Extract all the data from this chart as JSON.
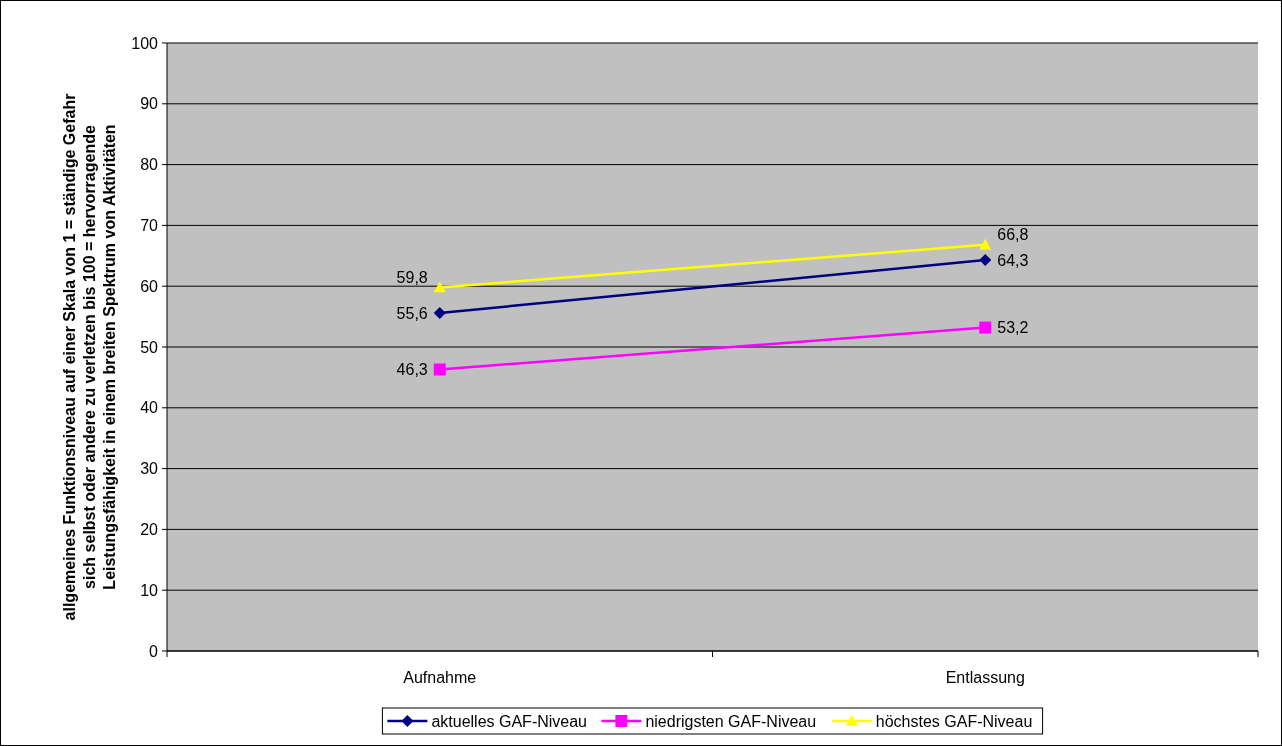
{
  "chart_data": {
    "type": "line",
    "ylabel": "allgemeines Funktionsniveau auf einer Skala von 1 = ständige Gefahr sich selbst oder andere zu verletzen bis 100 = hervorragende Leistungsfähigkeit in einem breiten Spektrum von Aktivitäten",
    "categories": [
      "Aufnahme",
      "Entlassung"
    ],
    "series": [
      {
        "name": "aktuelles GAF-Niveau",
        "color": "#000080",
        "marker": "diamond",
        "values": [
          55.6,
          64.3
        ],
        "value_labels": [
          "55,6",
          "64,3"
        ]
      },
      {
        "name": "niedrigsten GAF-Niveau",
        "color": "#ff00ff",
        "marker": "square",
        "values": [
          46.3,
          53.2
        ],
        "value_labels": [
          "46,3",
          "53,2"
        ]
      },
      {
        "name": "höchstes GAF-Niveau",
        "color": "#ffff00",
        "marker": "triangle",
        "values": [
          59.8,
          66.8
        ],
        "value_labels": [
          "59,8",
          "66,8"
        ]
      }
    ],
    "ylim": [
      0,
      100
    ],
    "yticks": [
      0,
      10,
      20,
      30,
      40,
      50,
      60,
      70,
      80,
      90,
      100
    ],
    "grid": "y",
    "legend": "bottom"
  }
}
